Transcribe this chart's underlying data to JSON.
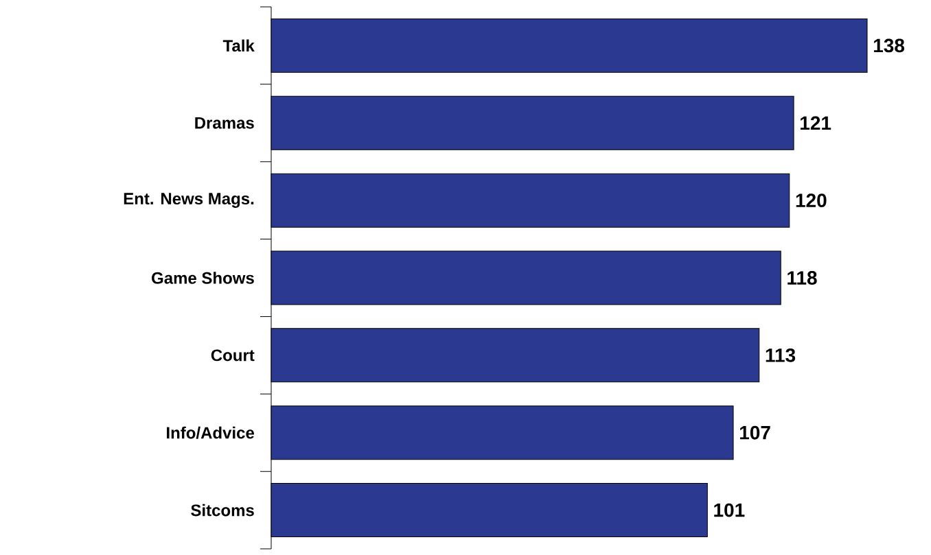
{
  "chart_data": {
    "type": "bar",
    "orientation": "horizontal",
    "categories": [
      "Talk",
      "Dramas",
      "Ent. News Mags.",
      "Game Shows",
      "Court",
      "Info/Advice",
      "Sitcoms"
    ],
    "values": [
      138,
      121,
      120,
      118,
      113,
      107,
      101
    ],
    "color": "#2b3990",
    "xlim": [
      0,
      138
    ],
    "data_labels": true,
    "tick_labels": "y",
    "grid": false
  }
}
